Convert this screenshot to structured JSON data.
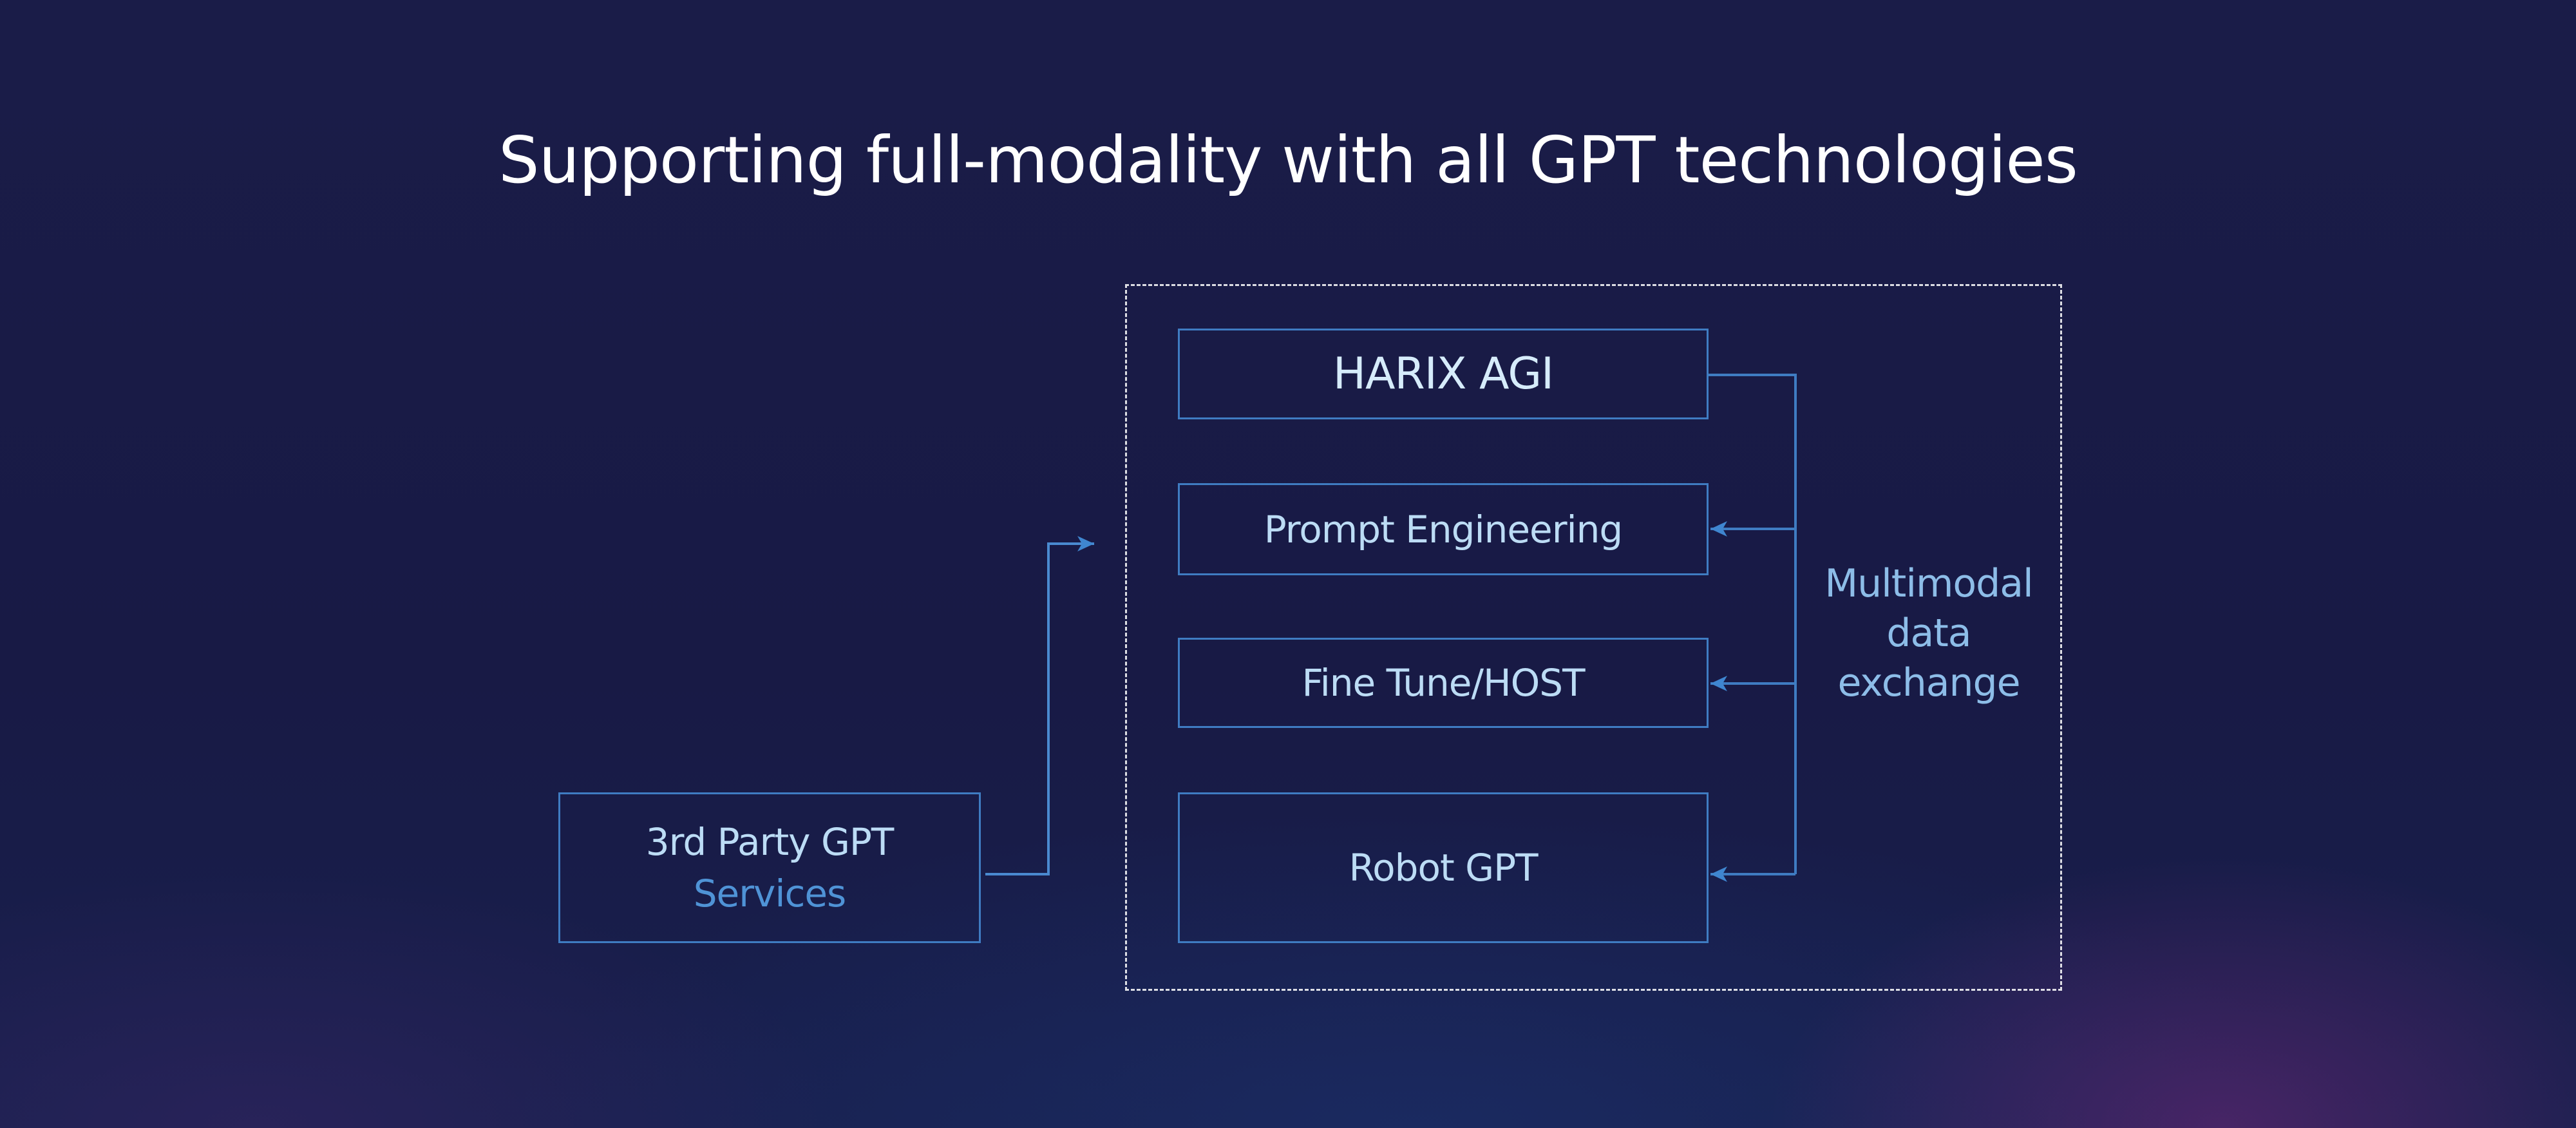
{
  "title": "Supporting full-modality with all GPT technologies",
  "platform_boxes": [
    {
      "label": "HARIX AGI"
    },
    {
      "label": "Prompt Engineering"
    },
    {
      "label": "Fine Tune/HOST"
    },
    {
      "label": "Robot GPT"
    }
  ],
  "external_box": {
    "line1": "3rd Party GPT",
    "line2": "Services"
  },
  "exchange_label": {
    "line1": "Multimodal",
    "line2": "data",
    "line3": "exchange"
  },
  "colors": {
    "background": "#181a45",
    "line": "#3f7cc2",
    "accent_text": "#4f93d6",
    "text": "#bcdcf5"
  }
}
